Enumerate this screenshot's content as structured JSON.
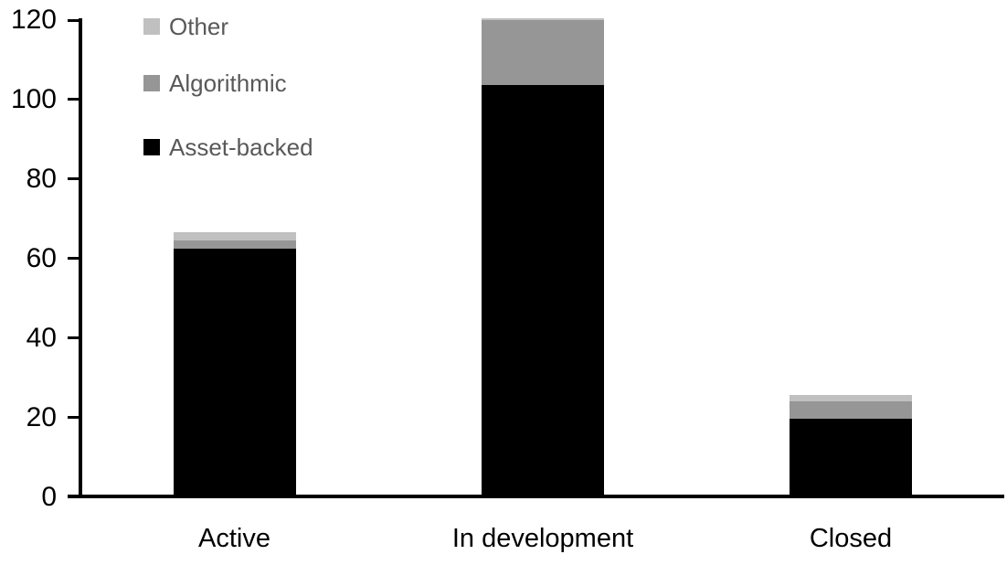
{
  "chart_data": {
    "type": "bar",
    "stacked": true,
    "title": "",
    "xlabel": "",
    "ylabel": "",
    "categories": [
      "Active",
      "In development",
      "Closed"
    ],
    "series": [
      {
        "name": "Asset-backed",
        "color": "#000000",
        "values": [
          62,
          103,
          19
        ]
      },
      {
        "name": "Algorithmic",
        "color": "#969696",
        "values": [
          2,
          16.5,
          4.5
        ]
      },
      {
        "name": "Other",
        "color": "#C0C0C0",
        "values": [
          2,
          0.5,
          1.5
        ]
      }
    ],
    "stack_totals": [
      66,
      120,
      25
    ],
    "ylim": [
      0,
      120
    ],
    "yticks": [
      0,
      20,
      40,
      60,
      80,
      100,
      120
    ],
    "grid": false,
    "legend_position": "top-left",
    "legend_order_top_to_bottom": [
      "Other",
      "Algorithmic",
      "Asset-backed"
    ]
  },
  "colors": {
    "background": "#FFFFFF",
    "axis": "#000000",
    "tick_label_text": "#000000",
    "category_label_text": "#000000",
    "legend_text": "#595959",
    "series_other": "#C0C0C0",
    "series_algorithmic": "#969696",
    "series_asset_backed": "#000000"
  }
}
